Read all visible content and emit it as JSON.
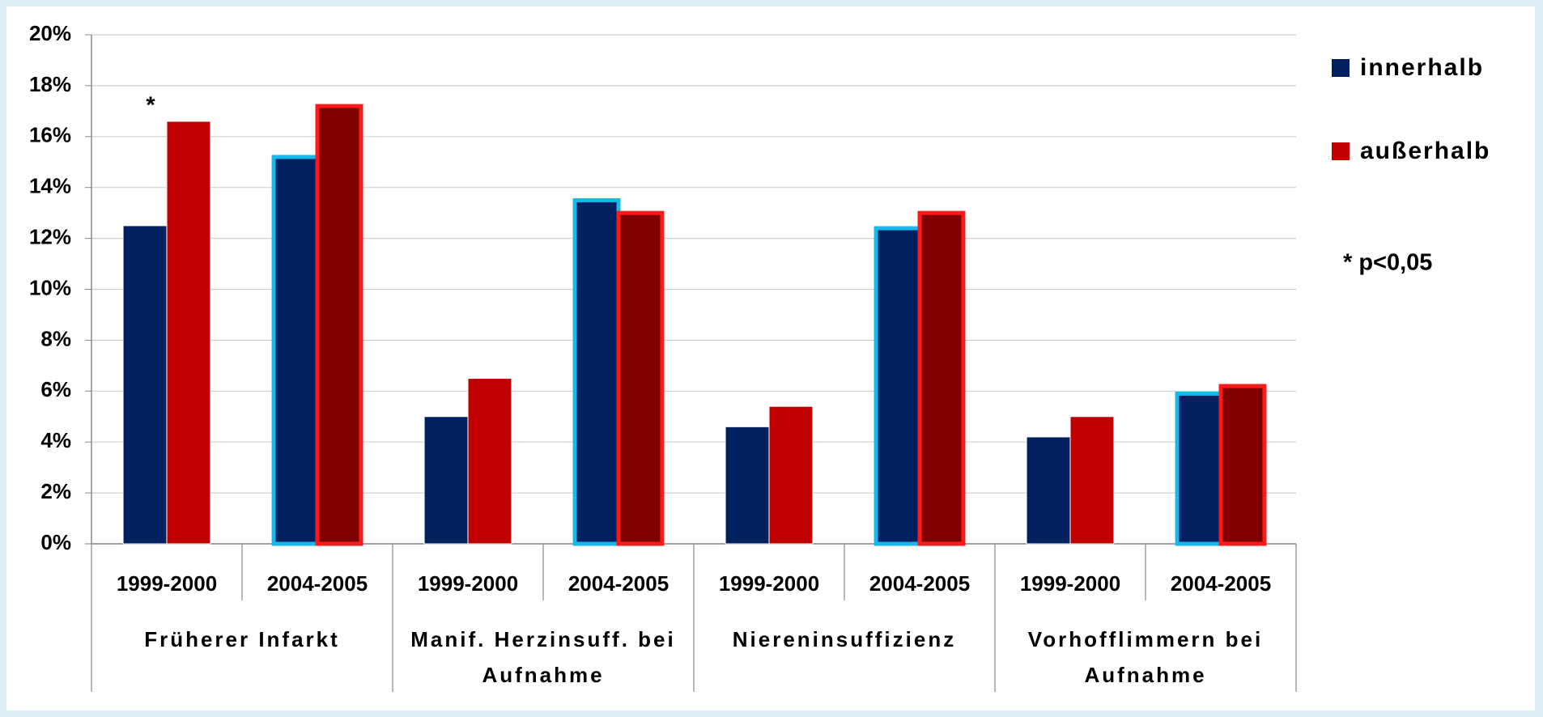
{
  "chart_data": {
    "type": "bar",
    "categories": [
      "1999-2000",
      "2004-2005",
      "1999-2000",
      "2004-2005",
      "1999-2000",
      "2004-2005",
      "1999-2000",
      "2004-2005"
    ],
    "groups": [
      "Früherer Infarkt",
      "Manif. Herzinsuff. bei Aufnahme",
      "Niereninsuffizienz",
      "Vorhofflimmern bei Aufnahme"
    ],
    "series": [
      {
        "name": "innerhalb",
        "color": "#002060",
        "values": [
          12.5,
          15.2,
          5.0,
          13.5,
          4.6,
          12.4,
          4.2,
          5.9
        ]
      },
      {
        "name": "außerhalb",
        "color": "#c00000",
        "values": [
          16.6,
          17.2,
          6.5,
          13.0,
          5.4,
          13.0,
          5.0,
          6.2
        ]
      }
    ],
    "ylim": [
      0,
      20
    ],
    "yticks": [
      {
        "value": 0,
        "label": "0%"
      },
      {
        "value": 2,
        "label": "2%"
      },
      {
        "value": 4,
        "label": "4%"
      },
      {
        "value": 6,
        "label": "6%"
      },
      {
        "value": 8,
        "label": "8%"
      },
      {
        "value": 10,
        "label": "10%"
      },
      {
        "value": 12,
        "label": "12%"
      },
      {
        "value": 14,
        "label": "14%"
      },
      {
        "value": 16,
        "label": "16%"
      },
      {
        "value": 18,
        "label": "18%"
      },
      {
        "value": 20,
        "label": "20%"
      }
    ],
    "grid": true,
    "legend": "right",
    "annotations": [
      "*",
      "*"
    ],
    "note": "* p<0,05"
  }
}
